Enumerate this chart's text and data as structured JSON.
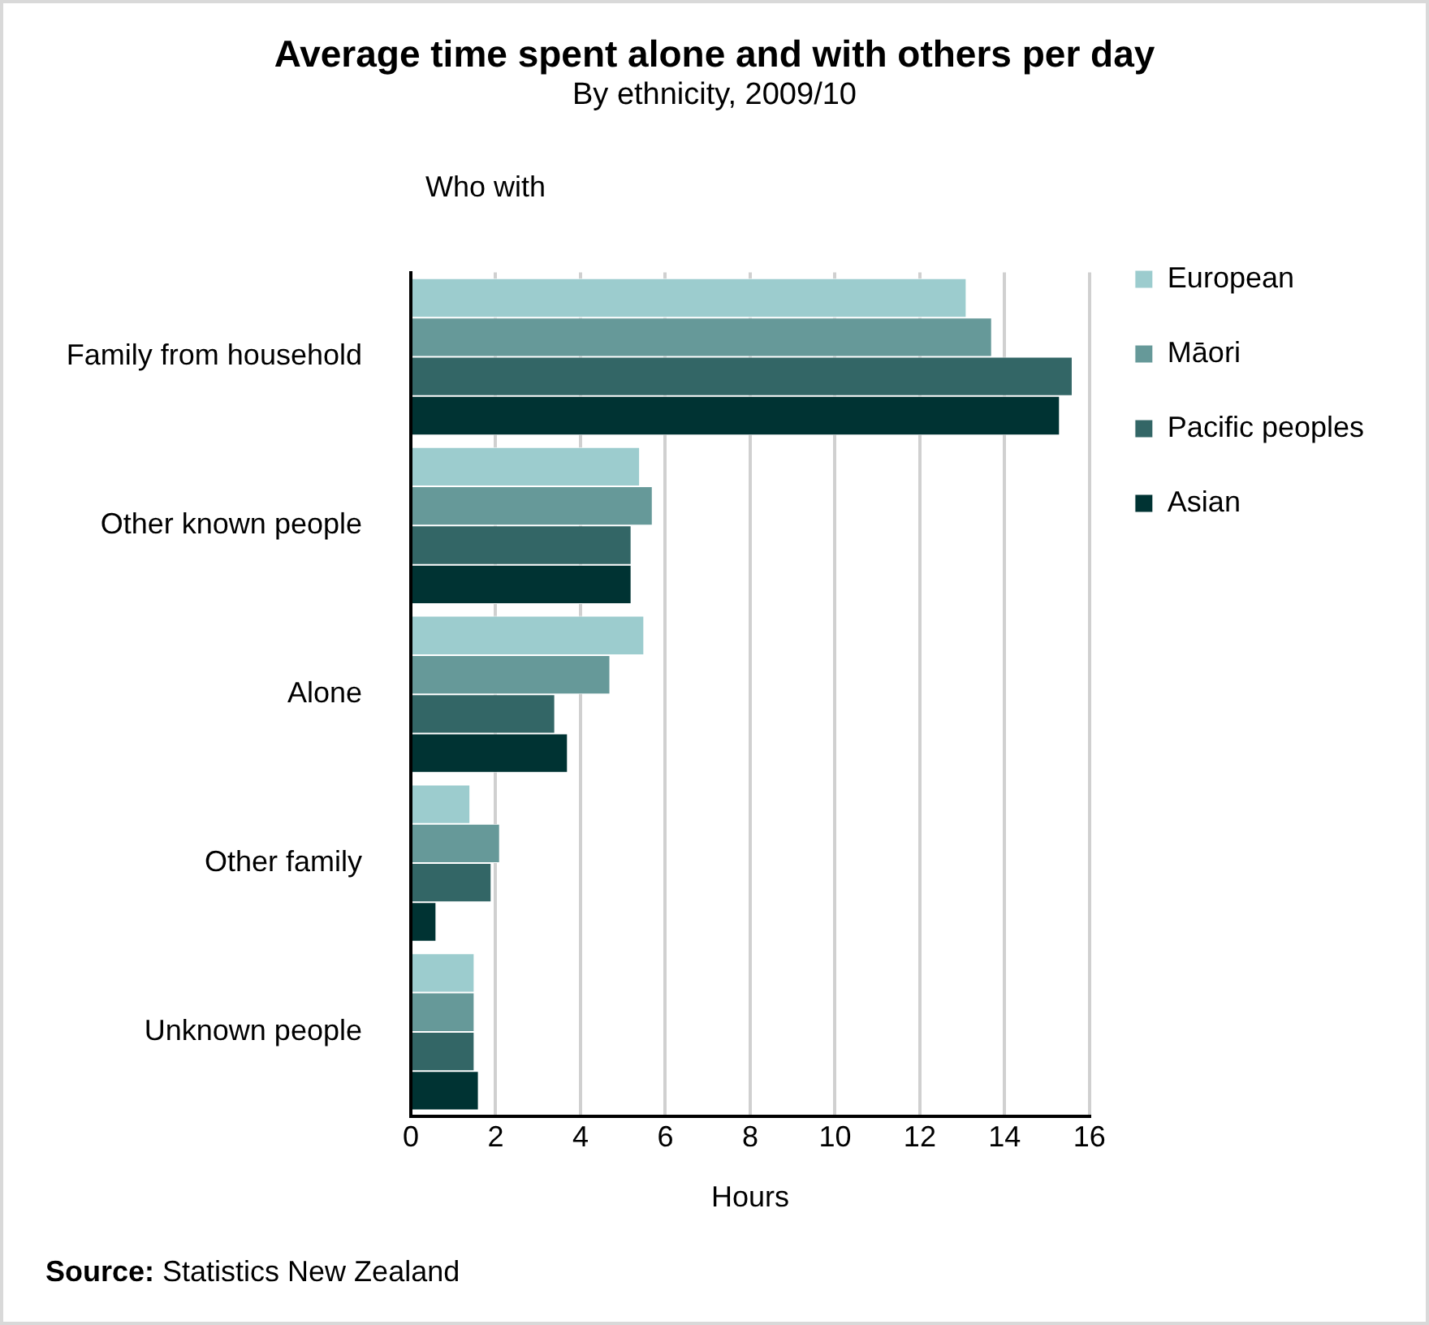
{
  "chart_data": {
    "type": "bar",
    "orientation": "horizontal",
    "title": "Average time spent alone and with others per day",
    "subtitle": "By ethnicity, 2009/10",
    "ylabel": "Who with",
    "xlabel": "Hours",
    "categories": [
      "Family from household",
      "Other known people",
      "Alone",
      "Other family",
      "Unknown people"
    ],
    "series": [
      {
        "name": "European",
        "color": "#9cccce",
        "values": [
          13.1,
          5.4,
          5.5,
          1.4,
          1.5
        ]
      },
      {
        "name": "Māori",
        "color": "#669999",
        "values": [
          13.7,
          5.7,
          4.7,
          2.1,
          1.5
        ]
      },
      {
        "name": "Pacific peoples",
        "color": "#336666",
        "values": [
          15.6,
          5.2,
          3.4,
          1.9,
          1.5
        ]
      },
      {
        "name": "Asian",
        "color": "#003333",
        "values": [
          15.3,
          5.2,
          3.7,
          0.6,
          1.6
        ]
      }
    ],
    "xlim": [
      0,
      16
    ],
    "xticks": [
      0,
      2,
      4,
      6,
      8,
      10,
      12,
      14,
      16
    ],
    "grid": "x",
    "legend": "top right",
    "annotations": [
      "Source: Statistics New Zealand"
    ]
  }
}
